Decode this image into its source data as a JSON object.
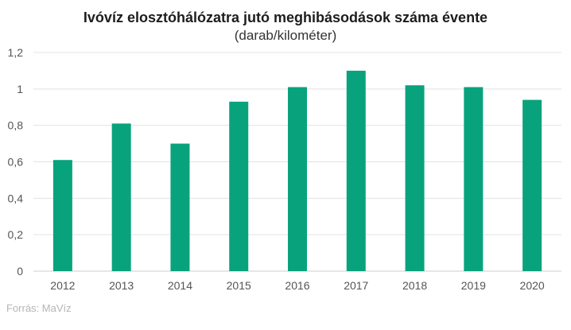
{
  "chart_data": {
    "type": "bar",
    "title": "Ivóvíz elosztóhálózatra jutó meghibásodások száma évente",
    "subtitle": "(darab/kilométer)",
    "categories": [
      "2012",
      "2013",
      "2014",
      "2015",
      "2016",
      "2017",
      "2018",
      "2019",
      "2020"
    ],
    "values": [
      0.61,
      0.81,
      0.7,
      0.93,
      1.01,
      1.1,
      1.02,
      1.01,
      0.94
    ],
    "ylim": [
      0,
      1.2
    ],
    "yticks": [
      0,
      0.2,
      0.4,
      0.6,
      0.8,
      1,
      1.2
    ],
    "ytick_labels": [
      "0",
      "0,2",
      "0,4",
      "0,6",
      "0,8",
      "1",
      "1,2"
    ],
    "xlabel": "",
    "ylabel": "",
    "grid": true,
    "bar_color": "#08a37c",
    "grid_color": "#e3e3e3",
    "source": "Forrás: MaVíz"
  }
}
